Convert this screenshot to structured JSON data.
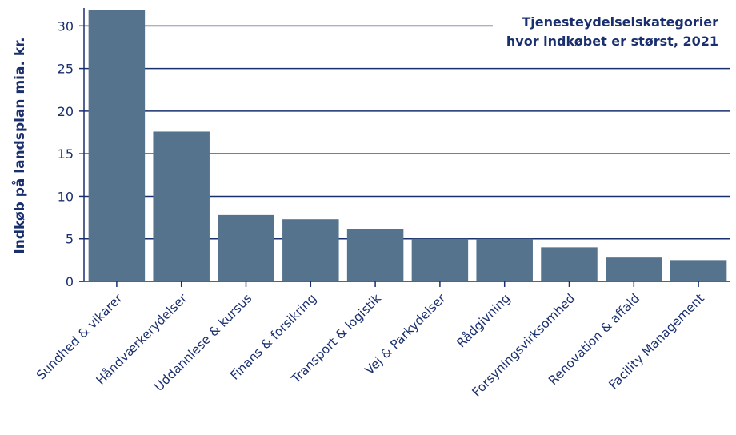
{
  "chart_data": {
    "type": "bar",
    "title_lines": [
      "Tjenesteydelselskategorier",
      "hvor indkøbet er størst, 2021"
    ],
    "ylabel": "Indkøb på landsplan mia. kr.",
    "xlabel": "",
    "ylim": [
      0,
      32
    ],
    "yticks": [
      0,
      5,
      10,
      15,
      20,
      25,
      30
    ],
    "grid": "horizontal",
    "categories": [
      "Sundhed & vikarer",
      "Håndværkerydelser",
      "Uddannlese & kursus",
      "Finans & forsikring",
      "Transport & logistik",
      "Vej & Parkydelser",
      "Rådgivning",
      "Forsyningsvirksomhed",
      "Renovation & affald",
      "Facility Management"
    ],
    "values": [
      31.9,
      17.6,
      7.8,
      7.3,
      6.1,
      5.0,
      5.0,
      4.0,
      2.8,
      2.5
    ],
    "colors": {
      "bar": "#55738c",
      "grid": "#1a2f6e",
      "text": "#1a2f6e"
    }
  }
}
